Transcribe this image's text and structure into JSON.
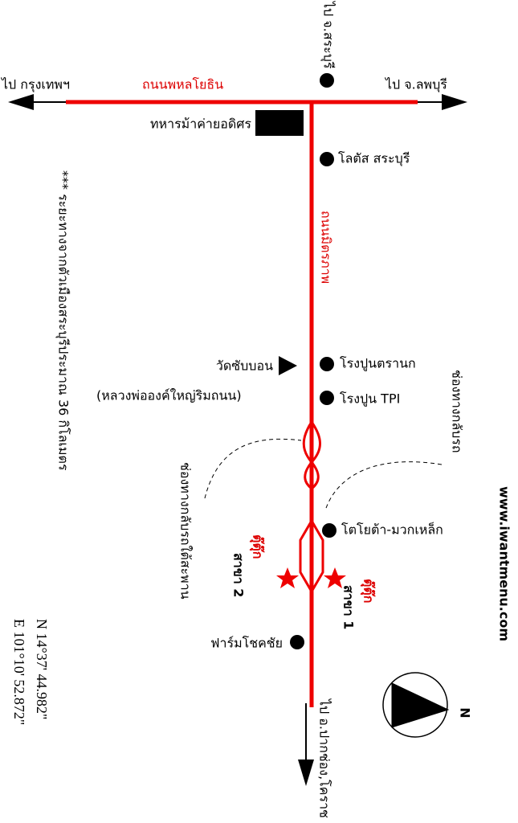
{
  "map": {
    "roads": {
      "main_road": "ถนนพหลโยธิน",
      "cross_road": "ถนนมิตรภาพ"
    },
    "directions": {
      "west": "ไป กรุงเทพฯ",
      "east": "ไป จ.ลพบุรี",
      "north": "ไป จ.สระบุรี",
      "south": "ไป อ.ปากช่อง,โคราช"
    },
    "landmarks": [
      "ทหารม้าค่ายอดิศร",
      "โลตัส สระบุรี",
      "วัดซับบอน",
      "(หลวงพ่อองค์ใหญ่ริมถนน)",
      "โรงปูนตรานก",
      "โรงปูน TPI",
      "โตโยต้า-มวกเหล็ก",
      "ฟาร์มโชคชัย"
    ],
    "u_turns": {
      "left": "ช่องทางกลับรถใต้สะพาน",
      "right": "ช่องทางกลับรถ"
    },
    "branches": [
      {
        "brand": "ตุ๊ตุ๊ก",
        "label": "สาขา 2"
      },
      {
        "brand": "ตุ๊ตุ๊ก",
        "label": "สาขา 1"
      }
    ],
    "distance_note": "*** ระยะทางจากตัวเมืองสระบุรีประมาณ 36 กิโลเมตร",
    "coordinates": [
      "N 14°37' 44.982\"",
      "E 101°10' 52.872\""
    ],
    "website": "www.iwantmenu.com",
    "compass": "N"
  }
}
